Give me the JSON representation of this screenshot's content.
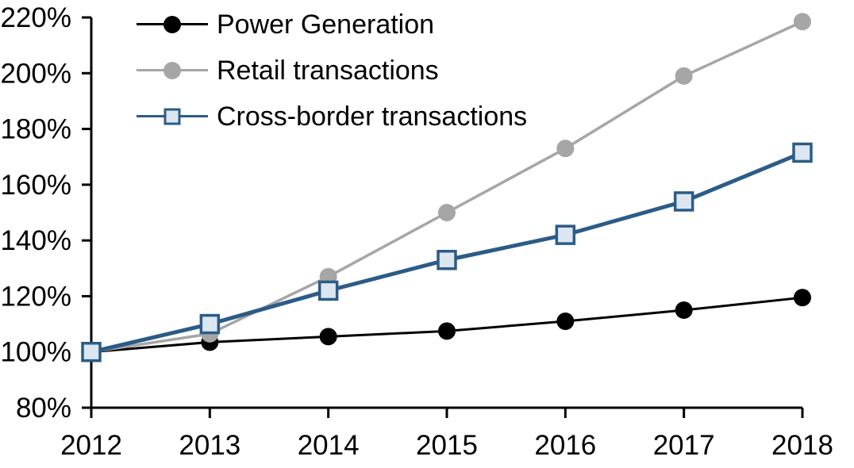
{
  "chart_data": {
    "type": "line",
    "title": "",
    "xlabel": "",
    "ylabel": "",
    "x": [
      "2012",
      "2013",
      "2014",
      "2015",
      "2016",
      "2017",
      "2018"
    ],
    "ylim": [
      80,
      220
    ],
    "ytick_step": 20,
    "yticklabels": [
      "80%",
      "100%",
      "120%",
      "140%",
      "160%",
      "180%",
      "200%",
      "220%"
    ],
    "grid": false,
    "legend_position": "top-left",
    "axis_color": "#000000",
    "series": [
      {
        "name": "Power Generation",
        "color": "#000000",
        "marker": "circle",
        "marker_fill": "#000000",
        "line_width": 3,
        "values": [
          100,
          103.5,
          105.5,
          107.5,
          111,
          115,
          119.5
        ]
      },
      {
        "name": "Retail transactions",
        "color": "#a6a6a6",
        "marker": "circle",
        "marker_fill": "#a6a6a6",
        "line_width": 3.5,
        "values": [
          100,
          106.5,
          127,
          150,
          173,
          199,
          218.5
        ]
      },
      {
        "name": "Cross-border transactions",
        "color": "#2b5c87",
        "marker": "square",
        "marker_fill": "#dce6f1",
        "line_width": 5,
        "values": [
          100,
          110,
          122,
          133,
          142,
          154,
          171.5
        ]
      }
    ]
  }
}
